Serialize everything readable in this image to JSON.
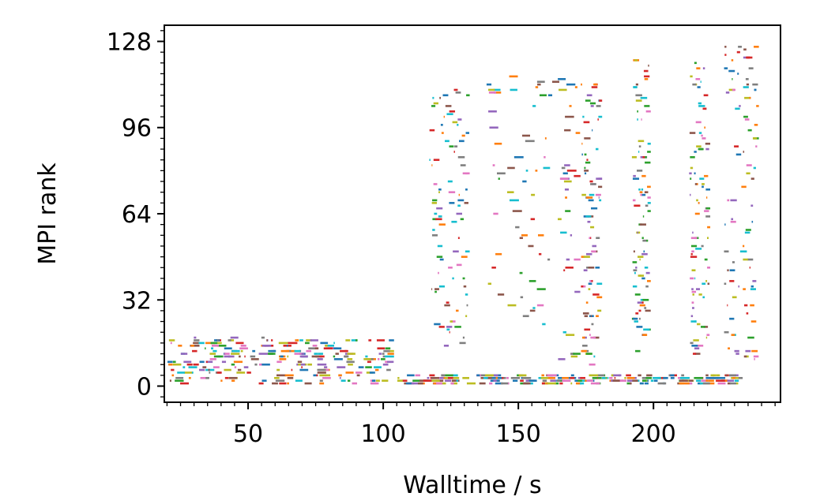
{
  "chart_data": {
    "type": "scatter",
    "title": "",
    "xlabel": "Walltime / s",
    "ylabel": "MPI rank",
    "xlim": [
      19,
      247
    ],
    "ylim": [
      -6,
      134
    ],
    "x_ticks": [
      50,
      100,
      150,
      200
    ],
    "x_tick_labels": [
      "50",
      "100",
      "150",
      "200"
    ],
    "y_ticks": [
      0,
      32,
      64,
      96,
      128
    ],
    "y_tick_labels": [
      "0",
      "32",
      "64",
      "96",
      "128"
    ],
    "grid": false,
    "legend": "none",
    "mark": "short horizontal segments (task intervals per rank)",
    "palette": [
      "#1f77b4",
      "#ff7f0e",
      "#2ca02c",
      "#d62728",
      "#9467bd",
      "#8c564b",
      "#e377c2",
      "#7f7f7f",
      "#bcbd22",
      "#17becf"
    ],
    "phases": [
      {
        "x_range": [
          20,
          103
        ],
        "rank_range": [
          1,
          18
        ],
        "density": "high"
      },
      {
        "x_range": [
          103,
          232
        ],
        "rank_range": [
          1,
          4
        ],
        "density": "high"
      },
      {
        "x_range": [
          117,
          131
        ],
        "rank_range": [
          15,
          110
        ],
        "density": "medium"
      },
      {
        "x_range": [
          138,
          172
        ],
        "rank_range": [
          8,
          115
        ],
        "density": "medium"
      },
      {
        "x_range": [
          173,
          180
        ],
        "rank_range": [
          8,
          114
        ],
        "density": "medium"
      },
      {
        "x_range": [
          192,
          198
        ],
        "rank_range": [
          10,
          121
        ],
        "density": "medium"
      },
      {
        "x_range": [
          213,
          220
        ],
        "rank_range": [
          10,
          123
        ],
        "density": "medium"
      },
      {
        "x_range": [
          226,
          238
        ],
        "rank_range": [
          10,
          127
        ],
        "density": "medium"
      }
    ]
  }
}
